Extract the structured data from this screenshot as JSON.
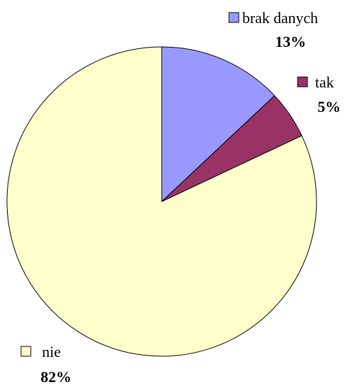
{
  "chart_data": {
    "type": "pie",
    "categories": [
      "brak danych",
      "tak",
      "nie"
    ],
    "values": [
      13,
      5,
      82
    ],
    "value_labels": [
      "13%",
      "5%",
      "82%"
    ],
    "colors": [
      "#9999ff",
      "#993366",
      "#ffffcc"
    ]
  }
}
